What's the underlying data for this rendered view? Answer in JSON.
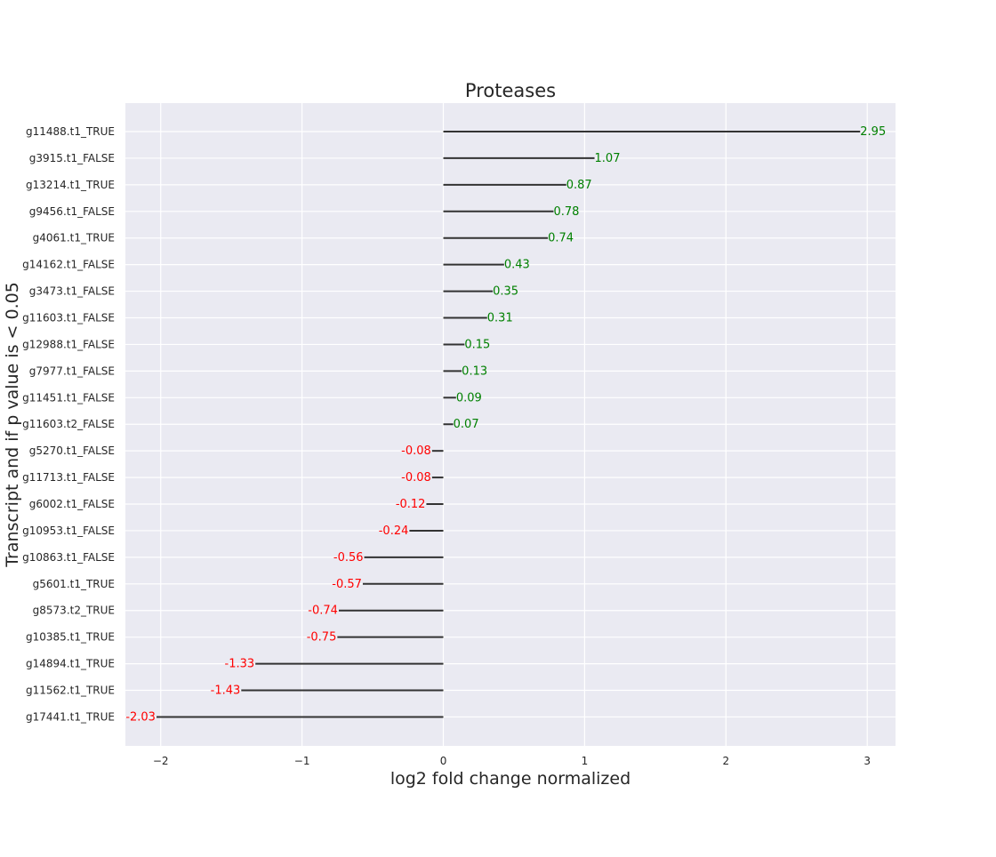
{
  "chart_data": {
    "type": "bar",
    "orientation": "horizontal",
    "style": "lollipop",
    "title": "Proteases",
    "xlabel": "log2 fold change normalized",
    "ylabel": "Transcript and if p value is < 0.05",
    "xlim": [
      -2.25,
      3.2
    ],
    "xticks": [
      -2,
      -1,
      0,
      1,
      2,
      3
    ],
    "xtick_labels": [
      "−2",
      "−1",
      "0",
      "1",
      "2",
      "3"
    ],
    "grid": true,
    "categories": [
      "g11488.t1_TRUE",
      "g3915.t1_FALSE",
      "g13214.t1_TRUE",
      "g9456.t1_FALSE",
      "g4061.t1_TRUE",
      "g14162.t1_FALSE",
      "g3473.t1_FALSE",
      "g11603.t1_FALSE",
      "g12988.t1_FALSE",
      "g7977.t1_FALSE",
      "g11451.t1_FALSE",
      "g11603.t2_FALSE",
      "g5270.t1_FALSE",
      "g11713.t1_FALSE",
      "g6002.t1_FALSE",
      "g10953.t1_FALSE",
      "g10863.t1_FALSE",
      "g5601.t1_TRUE",
      "g8573.t2_TRUE",
      "g10385.t1_TRUE",
      "g14894.t1_TRUE",
      "g11562.t1_TRUE",
      "g17441.t1_TRUE"
    ],
    "values": [
      2.95,
      1.07,
      0.87,
      0.78,
      0.74,
      0.43,
      0.35,
      0.31,
      0.15,
      0.13,
      0.09,
      0.07,
      -0.08,
      -0.08,
      -0.12,
      -0.24,
      -0.56,
      -0.57,
      -0.74,
      -0.75,
      -1.33,
      -1.43,
      -2.03
    ],
    "value_labels": [
      "2.95",
      "1.07",
      "0.87",
      "0.78",
      "0.74",
      "0.43",
      "0.35",
      "0.31",
      "0.15",
      "0.13",
      "0.09",
      "0.07",
      "-0.08",
      "-0.08",
      "-0.12",
      "-0.24",
      "-0.56",
      "-0.57",
      "-0.74",
      "-0.75",
      "-1.33",
      "-1.43",
      "-2.03"
    ],
    "colors": {
      "background": "#eaeaf2",
      "grid": "#ffffff",
      "stem": "#333333",
      "positive_label": "#008000",
      "negative_label": "#ff0000",
      "text": "#262626"
    }
  }
}
